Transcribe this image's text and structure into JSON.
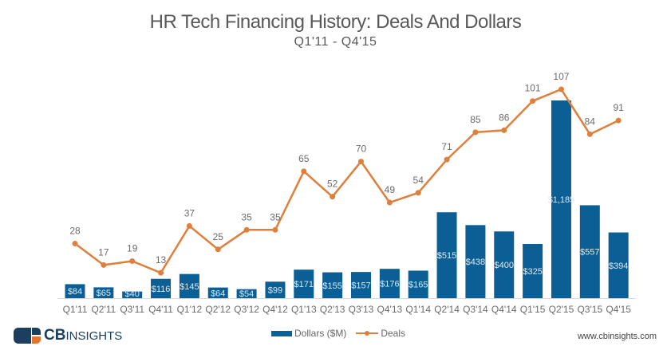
{
  "chart_data": {
    "type": "bar+line",
    "title": "HR Tech Financing History: Deals And Dollars",
    "subtitle": "Q1'11 - Q4'15",
    "xlabel": "",
    "ylabel": "",
    "grid": false,
    "legend_position": "bottom-center",
    "categories": [
      "Q1'11",
      "Q2'11",
      "Q3'11",
      "Q4'11",
      "Q1'12",
      "Q2'12",
      "Q3'12",
      "Q4'12",
      "Q1'13",
      "Q2'13",
      "Q3'13",
      "Q4'13",
      "Q1'14",
      "Q2'14",
      "Q3'14",
      "Q4'14",
      "Q1'15",
      "Q2'15",
      "Q3'15",
      "Q4'15"
    ],
    "series": [
      {
        "name": "Dollars ($M)",
        "type": "bar",
        "color": "#0b5f94",
        "values": [
          84,
          65,
          40,
          116,
          145,
          64,
          54,
          99,
          171,
          155,
          157,
          176,
          165,
          515,
          438,
          400,
          325,
          1185,
          557,
          394
        ],
        "labels": [
          "$84",
          "$65",
          "$40",
          "$116",
          "$145",
          "$64",
          "$54",
          "$99",
          "$171",
          "$155",
          "$157",
          "$176",
          "$165",
          "$515",
          "$438",
          "$400",
          "$325",
          "$1,185",
          "$557",
          "$394"
        ]
      },
      {
        "name": "Deals",
        "type": "line",
        "color": "#e07f3c",
        "values": [
          28,
          17,
          19,
          13,
          37,
          25,
          35,
          35,
          65,
          52,
          70,
          49,
          54,
          71,
          85,
          86,
          101,
          107,
          84,
          91
        ]
      }
    ],
    "bar_ylim": [
      0,
      1185
    ],
    "line_ylim": [
      0,
      107
    ]
  },
  "legend": {
    "dollars_label": "Dollars ($M)",
    "deals_label": "Deals"
  },
  "branding": {
    "logo_bold": "CB",
    "logo_rest": "INSIGHTS",
    "website": "www.cbinsights.com"
  }
}
